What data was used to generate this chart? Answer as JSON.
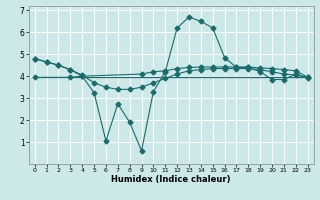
{
  "xlabel": "Humidex (Indice chaleur)",
  "bg_color": "#cde8e8",
  "grid_color": "#ffffff",
  "line_color": "#1a6b6b",
  "xlim": [
    -0.5,
    23.5
  ],
  "ylim": [
    0,
    7.2
  ],
  "yticks": [
    1,
    2,
    3,
    4,
    5,
    6,
    7
  ],
  "xticks": [
    0,
    1,
    2,
    3,
    4,
    5,
    6,
    7,
    8,
    9,
    10,
    11,
    12,
    13,
    14,
    15,
    16,
    17,
    18,
    19,
    20,
    21,
    22,
    23
  ],
  "line1_x": [
    0,
    1,
    2,
    3,
    4,
    5,
    6,
    7,
    8,
    9,
    10,
    11,
    12,
    13,
    14,
    15,
    16,
    17,
    18,
    19,
    20,
    21,
    22,
    23
  ],
  "line1_y": [
    4.8,
    4.65,
    4.5,
    4.3,
    4.05,
    3.7,
    3.5,
    3.4,
    3.4,
    3.5,
    3.7,
    3.9,
    4.1,
    4.25,
    4.3,
    4.35,
    4.35,
    4.35,
    4.35,
    4.3,
    4.2,
    4.1,
    4.05,
    3.95
  ],
  "line2_x": [
    0,
    1,
    2,
    3,
    4,
    5,
    6,
    7,
    8,
    9,
    10,
    11,
    12,
    13,
    14,
    15,
    16,
    17,
    18,
    19,
    20,
    21,
    22,
    23
  ],
  "line2_y": [
    4.8,
    4.65,
    4.5,
    4.3,
    4.0,
    3.25,
    1.05,
    2.75,
    1.9,
    0.6,
    3.3,
    4.2,
    6.2,
    6.7,
    6.5,
    6.2,
    4.85,
    4.4,
    4.4,
    4.2,
    3.85,
    3.85,
    4.1,
    3.9
  ],
  "line3_x": [
    0,
    1,
    2,
    3,
    4,
    5,
    6,
    7,
    8,
    9,
    10,
    11,
    12,
    13,
    14,
    15,
    16,
    17,
    18,
    19,
    20,
    21,
    22,
    23
  ],
  "line3_y": [
    3.95,
    3.95,
    3.95,
    3.95,
    3.95,
    3.95,
    3.95,
    3.95,
    3.95,
    3.95,
    3.95,
    3.95,
    3.95,
    3.95,
    3.95,
    3.95,
    3.95,
    3.95,
    3.95,
    3.95,
    3.95,
    3.95,
    3.95,
    3.95
  ],
  "line4_x": [
    0,
    3,
    4,
    9,
    10,
    11,
    12,
    13,
    14,
    15,
    16,
    17,
    18,
    19,
    20,
    21,
    22,
    23
  ],
  "line4_y": [
    3.95,
    3.95,
    4.0,
    4.1,
    4.2,
    4.25,
    4.35,
    4.4,
    4.42,
    4.42,
    4.42,
    4.42,
    4.42,
    4.38,
    4.35,
    4.3,
    4.25,
    3.95
  ]
}
